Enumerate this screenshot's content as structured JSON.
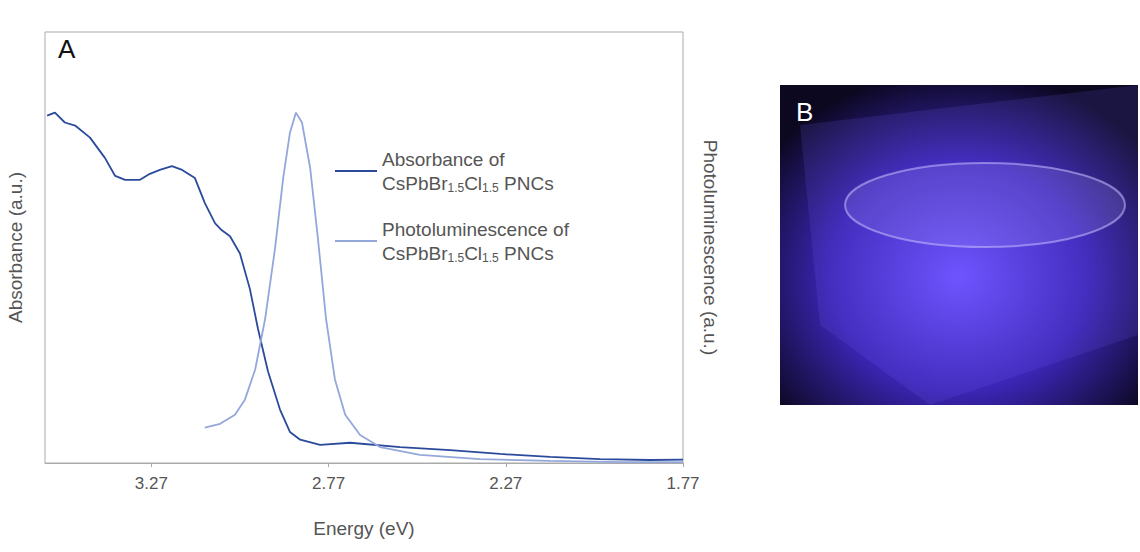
{
  "chart_data": {
    "type": "line",
    "annotations": [
      "A"
    ],
    "x_label": "Energy (eV)",
    "y_label": "Absorbance (a.u.)",
    "y2_label": "Photoluminescence (a.u.)",
    "xlim": [
      3.57,
      1.77
    ],
    "xticks": [
      3.27,
      2.77,
      2.27,
      1.77
    ],
    "ylim": [
      0,
      1
    ],
    "y2lim": [
      0,
      1
    ],
    "grid": false,
    "tick_labels": "x",
    "legend": "upper right",
    "series": [
      {
        "name": "Absorbance of CsPbBr1.5Cl1.5 PNCs",
        "color": "#2b4a9b",
        "marker": "none",
        "line_style": "solid",
        "x": [
          3.564,
          3.542,
          3.514,
          3.485,
          3.443,
          3.401,
          3.372,
          3.344,
          3.302,
          3.274,
          3.246,
          3.212,
          3.183,
          3.147,
          3.119,
          3.09,
          3.071,
          3.048,
          3.02,
          2.992,
          2.969,
          2.941,
          2.907,
          2.879,
          2.85,
          2.794,
          2.709,
          2.568,
          2.427,
          2.286,
          2.145,
          2.004,
          1.863,
          1.77
        ],
        "values": [
          0.806,
          0.813,
          0.79,
          0.783,
          0.755,
          0.708,
          0.666,
          0.657,
          0.657,
          0.671,
          0.68,
          0.689,
          0.68,
          0.661,
          0.603,
          0.556,
          0.54,
          0.526,
          0.486,
          0.404,
          0.311,
          0.213,
          0.124,
          0.072,
          0.054,
          0.042,
          0.047,
          0.037,
          0.03,
          0.021,
          0.014,
          0.009,
          0.007,
          0.008
        ]
      },
      {
        "name": "Photoluminescence of CsPbBr1.5Cl1.5 PNCs",
        "color": "#93a7da",
        "marker": "none",
        "line_style": "solid",
        "axis": "y2",
        "x": [
          3.119,
          3.076,
          3.034,
          3.006,
          2.977,
          2.949,
          2.921,
          2.898,
          2.879,
          2.862,
          2.845,
          2.822,
          2.8,
          2.777,
          2.752,
          2.723,
          2.681,
          2.625,
          2.512,
          2.343,
          2.145,
          1.948,
          1.77
        ],
        "values": [
          0.082,
          0.091,
          0.112,
          0.147,
          0.217,
          0.334,
          0.498,
          0.661,
          0.766,
          0.813,
          0.79,
          0.685,
          0.521,
          0.334,
          0.194,
          0.112,
          0.065,
          0.037,
          0.019,
          0.009,
          0.005,
          0.002,
          0.002
        ]
      }
    ]
  },
  "photo": {
    "label": "B"
  }
}
